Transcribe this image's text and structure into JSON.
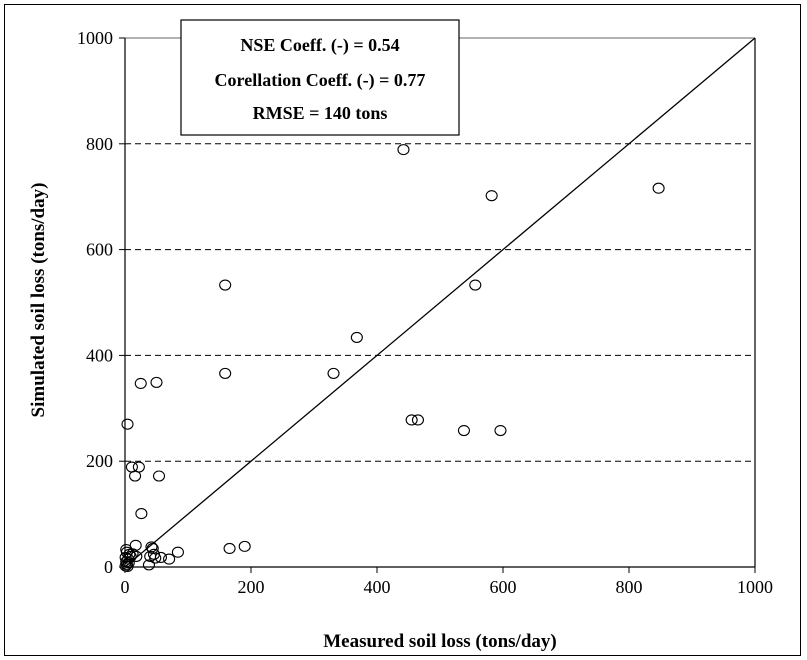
{
  "chart_data": {
    "type": "scatter",
    "xlabel": "Measured soil loss (tons/day)",
    "ylabel": "Simulated soil loss (tons/day)",
    "xlim": [
      0,
      1000
    ],
    "ylim": [
      0,
      1000
    ],
    "x_ticks": [
      "0",
      "200",
      "400",
      "600",
      "800",
      "1000"
    ],
    "y_ticks": [
      "0",
      "200",
      "400",
      "600",
      "800",
      "1000"
    ],
    "grid": "horizontal dashed",
    "reference_line": "1:1",
    "annotations": [
      "NSE Coeff. (-) = 0.54",
      "Corellation Coeff. (-) = 0.77",
      "RMSE = 140 tons"
    ],
    "points": [
      [
        442,
        789
      ],
      [
        582,
        702
      ],
      [
        847,
        716
      ],
      [
        556,
        533
      ],
      [
        159,
        533
      ],
      [
        368,
        434
      ],
      [
        159,
        366
      ],
      [
        331,
        366
      ],
      [
        25,
        347
      ],
      [
        50,
        349
      ],
      [
        455,
        278
      ],
      [
        465,
        278
      ],
      [
        538,
        258
      ],
      [
        596,
        258
      ],
      [
        4,
        270
      ],
      [
        11,
        189
      ],
      [
        22,
        189
      ],
      [
        16,
        172
      ],
      [
        54,
        172
      ],
      [
        26,
        101
      ],
      [
        17,
        41
      ],
      [
        42,
        38
      ],
      [
        44,
        35
      ],
      [
        84,
        28
      ],
      [
        166,
        35
      ],
      [
        190,
        39
      ],
      [
        2,
        33
      ],
      [
        3,
        28
      ],
      [
        7,
        24
      ],
      [
        12,
        25
      ],
      [
        1,
        18
      ],
      [
        5,
        15
      ],
      [
        9,
        20
      ],
      [
        18,
        20
      ],
      [
        40,
        20
      ],
      [
        46,
        24
      ],
      [
        48,
        17
      ],
      [
        57,
        18
      ],
      [
        70,
        15
      ],
      [
        2,
        10
      ],
      [
        3,
        5
      ],
      [
        1,
        2
      ],
      [
        4,
        1
      ],
      [
        38,
        4
      ],
      [
        6,
        8
      ]
    ]
  }
}
